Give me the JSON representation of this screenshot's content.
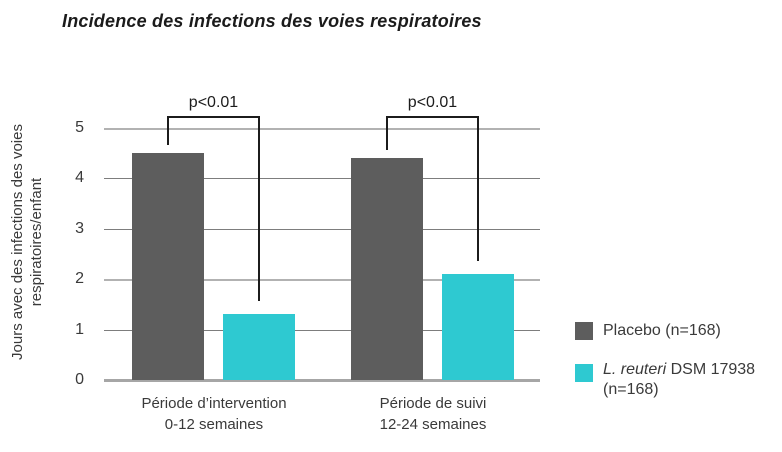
{
  "chart_data": {
    "type": "bar",
    "title": "Incidence des infections des voies respiratoires",
    "ylabel": "Jours avec des infections des voies respiratoires/enfant",
    "ylabel_lines": [
      "Jours avec des infections des voies",
      "respiratoires/enfant"
    ],
    "categories": [
      {
        "line1": "Période d’intervention",
        "line2": "0-12 semaines"
      },
      {
        "line1": "Période de suivi",
        "line2": "12-24 semaines"
      }
    ],
    "series": [
      {
        "name": "Placebo (n=168)",
        "color": "#5d5d5d",
        "values": [
          4.5,
          4.4
        ]
      },
      {
        "name": "L. reuteri DSM 17938 (n=168)",
        "color": "#2ec9d1",
        "values": [
          1.3,
          2.1
        ]
      }
    ],
    "yticks": [
      0,
      1,
      2,
      3,
      4,
      5
    ],
    "ylim": [
      0,
      5
    ],
    "grid": true,
    "legend_position": "right",
    "annotations": [
      {
        "label": "p<0.01",
        "group": 0
      },
      {
        "label": "p<0.01",
        "group": 1
      }
    ]
  },
  "legend": {
    "items": [
      {
        "label": "Placebo (n=168)",
        "color": "#5d5d5d"
      },
      {
        "label_italic": "L. reuteri",
        "label_rest": " DSM 17938",
        "label_line2": "(n=168)",
        "color": "#2ec9d1"
      }
    ]
  }
}
